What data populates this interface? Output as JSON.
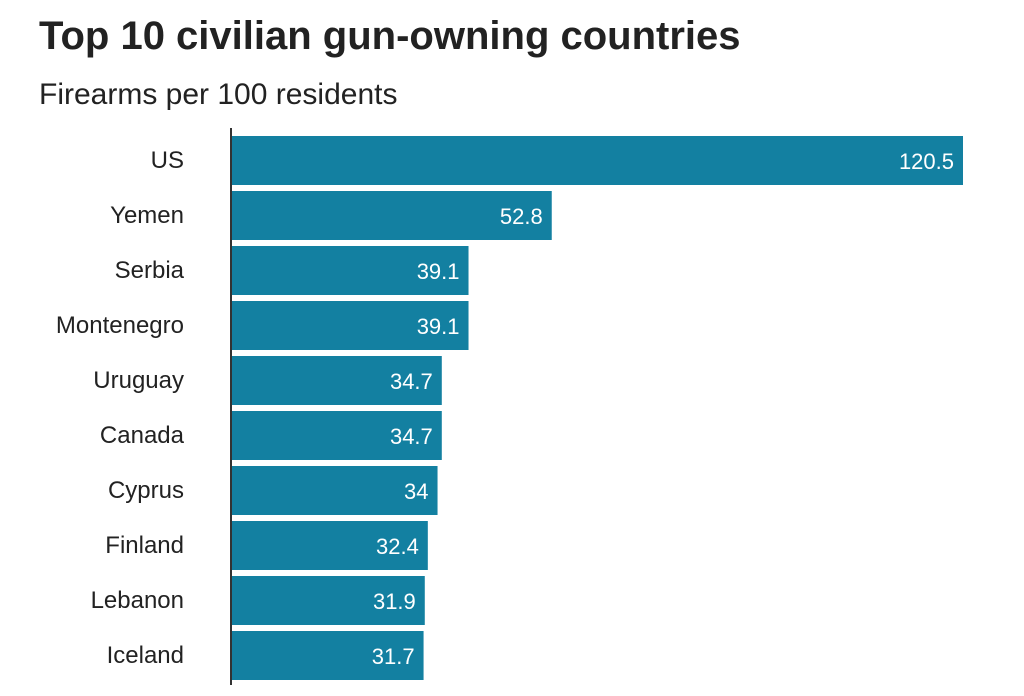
{
  "chart_data": {
    "type": "bar",
    "orientation": "horizontal",
    "title": "Top 10 civilian gun-owning countries",
    "subtitle": "Firearms per 100 residents",
    "categories": [
      "US",
      "Yemen",
      "Serbia",
      "Montenegro",
      "Uruguay",
      "Canada",
      "Cyprus",
      "Finland",
      "Lebanon",
      "Iceland"
    ],
    "values": [
      120.5,
      52.8,
      39.1,
      39.1,
      34.7,
      34.7,
      34,
      32.4,
      31.9,
      31.7
    ],
    "value_labels": [
      "120.5",
      "52.8",
      "39.1",
      "39.1",
      "34.7",
      "34.7",
      "34",
      "32.4",
      "31.9",
      "31.7"
    ],
    "xlabel": "",
    "ylabel": "",
    "xlim": [
      0,
      120.5
    ],
    "grid": false,
    "bar_color": "#1380a1",
    "label_color": "#ffffff",
    "text_color": "#222222",
    "axis_color": "#333333"
  }
}
